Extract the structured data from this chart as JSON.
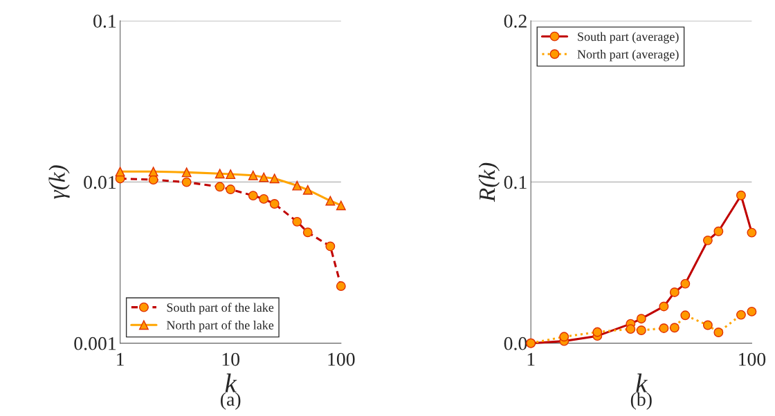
{
  "chart_data": [
    {
      "type": "line",
      "xlabel": "k",
      "ylabel": "γ(k)",
      "log": "xy",
      "xlim": [
        1,
        100
      ],
      "xticks": [
        1,
        10,
        100
      ],
      "ylim": [
        0.001,
        0.1
      ],
      "yticks": [
        0.001,
        0.01,
        0.1
      ],
      "grid": "y",
      "legend": "bottom left",
      "annotations": [
        "(a)"
      ],
      "x": [
        1,
        2,
        4,
        8,
        10,
        16,
        20,
        25,
        40,
        50,
        80,
        100
      ],
      "series": [
        {
          "name": "South part of the lake",
          "color": "#c00000",
          "marker": "circle",
          "line_style": "dashed",
          "values": [
            0.0105,
            0.01033,
            0.00997,
            0.00934,
            0.009,
            0.00823,
            0.00785,
            0.00732,
            0.00567,
            0.00487,
            0.00399,
            0.00226
          ]
        },
        {
          "name": "North part of the lake",
          "color": "#ffa500",
          "marker": "triangle",
          "line_style": "solid",
          "values": [
            0.0116,
            0.0116,
            0.01148,
            0.01127,
            0.01118,
            0.01099,
            0.0107,
            0.01052,
            0.0095,
            0.00894,
            0.00765,
            0.00716
          ]
        }
      ]
    },
    {
      "type": "line",
      "xlabel": "k",
      "ylabel": "R(k)",
      "log": "x",
      "xlim": [
        1,
        100
      ],
      "xticks": [
        1,
        100
      ],
      "ylim": [
        0,
        0.2
      ],
      "yticks": [
        {
          "value": 0,
          "label": "0.0"
        },
        0.1,
        0.2
      ],
      "grid": "y",
      "legend": "top left",
      "annotations": [
        "(b)"
      ],
      "x": [
        1,
        2,
        4,
        8,
        10,
        16,
        20,
        25,
        40,
        50,
        80,
        100
      ],
      "series": [
        {
          "name": "South part (average)",
          "color": "#c00000",
          "marker": "circle",
          "line_style": "solid",
          "values": [
            0.0,
            0.0013,
            0.0045,
            0.012,
            0.0152,
            0.0228,
            0.0316,
            0.0369,
            0.0638,
            0.0694,
            0.0917,
            0.0686
          ]
        },
        {
          "name": "North part (average)",
          "color": "#ffa500",
          "marker": "circle",
          "line_style": "dotted",
          "values": [
            0.0,
            0.004,
            0.0069,
            0.0088,
            0.008,
            0.0093,
            0.0096,
            0.0173,
            0.0112,
            0.0067,
            0.0176,
            0.0196
          ]
        }
      ]
    }
  ]
}
